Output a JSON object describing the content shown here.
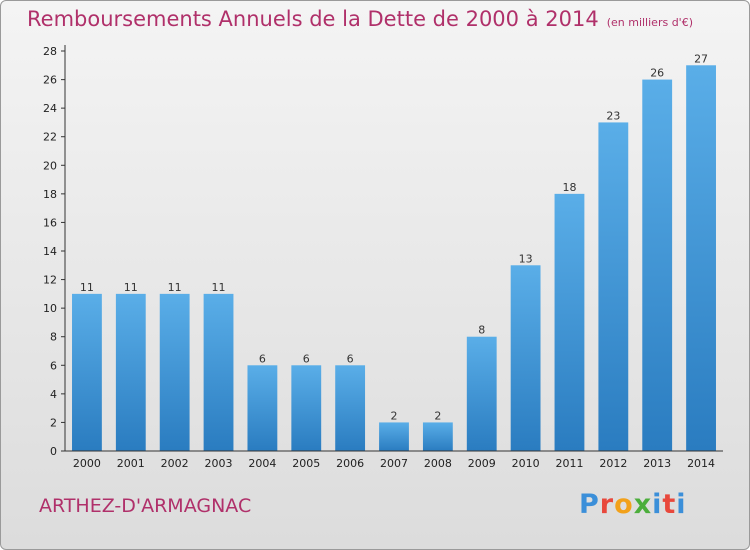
{
  "title": "Remboursements Annuels de la Dette de 2000 à 2014",
  "title_unit": "(en milliers d'€)",
  "commune": "ARTHEZ-D'ARMAGNAC",
  "logo": {
    "text": "Proxiti",
    "letter_colors": [
      "#3b8fd9",
      "#e8483c",
      "#f2a11a",
      "#4cae3c",
      "#3b8fd9",
      "#e8483c"
    ]
  },
  "colors": {
    "title": "#b0306a",
    "bar_light": "#5aaee8",
    "bar_dark": "#2a7cc0",
    "axis": "#333333"
  },
  "chart_data": {
    "type": "bar",
    "title": "Remboursements Annuels de la Dette de 2000 à 2014",
    "subtitle": "(en milliers d'€)",
    "categories": [
      "2000",
      "2001",
      "2002",
      "2003",
      "2004",
      "2005",
      "2006",
      "2007",
      "2008",
      "2009",
      "2010",
      "2011",
      "2012",
      "2013",
      "2014"
    ],
    "values": [
      11,
      11,
      11,
      11,
      6,
      6,
      6,
      2,
      2,
      8,
      13,
      18,
      23,
      26,
      27
    ],
    "ylim": [
      0,
      28
    ],
    "yticks": [
      0,
      2,
      4,
      6,
      8,
      10,
      12,
      14,
      16,
      18,
      20,
      22,
      24,
      26,
      28
    ],
    "grid": false,
    "data_labels": true
  }
}
